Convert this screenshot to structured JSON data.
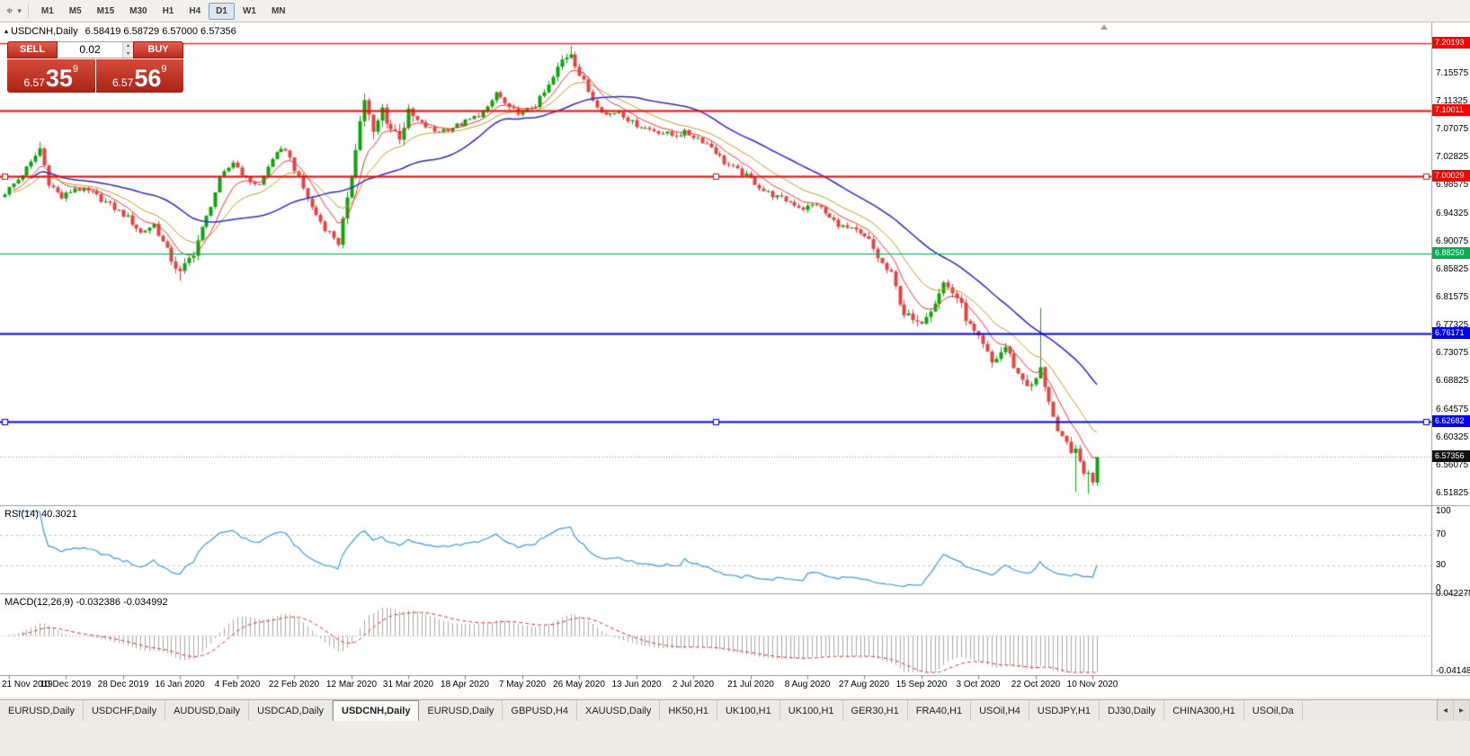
{
  "toolbar": {
    "cursor_icon": "⌖",
    "dropdown_icon": "▾",
    "timeframes": [
      "M1",
      "M5",
      "M15",
      "M30",
      "H1",
      "H4",
      "D1",
      "W1",
      "MN"
    ],
    "active_timeframe": "D1"
  },
  "chart": {
    "collapse_icon": "▴",
    "title": "USDCNH,Daily",
    "ohlc": "6.58419 6.58729 6.57000 6.57356"
  },
  "trade_panel": {
    "sell_label": "SELL",
    "buy_label": "BUY",
    "volume": "0.02",
    "spin_up": "▴",
    "spin_down": "▾",
    "sell_price": {
      "prefix": "6.57",
      "big": "35",
      "sup": "9"
    },
    "buy_price": {
      "prefix": "6.57",
      "big": "56",
      "sup": "9"
    }
  },
  "price_axis": {
    "ticks": [
      "7.15575",
      "7.11325",
      "7.07075",
      "7.02825",
      "6.98575",
      "6.94325",
      "6.90075",
      "6.85825",
      "6.81575",
      "6.77325",
      "6.73075",
      "6.68825",
      "6.64575",
      "6.60325",
      "6.56075",
      "6.51825"
    ]
  },
  "rsi_panel": {
    "header": "RSI(14) 40.3021",
    "axis_labels": [
      "100",
      "70",
      "30",
      "0"
    ]
  },
  "macd_panel": {
    "header": "MACD(12,26,9) -0.032386 -0.034992",
    "axis_top": "0.042275",
    "axis_bottom": "-0.04148"
  },
  "dates": [
    "21 Nov 2019",
    "10 Dec 2019",
    "28 Dec 2019",
    "16 Jan 2020",
    "4 Feb 2020",
    "22 Feb 2020",
    "12 Mar 2020",
    "31 Mar 2020",
    "18 Apr 2020",
    "7 May 2020",
    "26 May 2020",
    "13 Jun 2020",
    "2 Jul 2020",
    "21 Jul 2020",
    "8 Aug 2020",
    "27 Aug 2020",
    "15 Sep 2020",
    "3 Oct 2020",
    "22 Oct 2020",
    "10 Nov 2020"
  ],
  "tabs": {
    "items": [
      "EURUSD,Daily",
      "USDCHF,Daily",
      "AUDUSD,Daily",
      "USDCAD,Daily",
      "USDCNH,Daily",
      "EURUSD,Daily",
      "GBPUSD,H4",
      "XAUUSD,Daily",
      "HK50,H1",
      "UK100,H1",
      "UK100,H1",
      "GER30,H1",
      "FRA40,H1",
      "USOil,H4",
      "USDJPY,H1",
      "DJ30,Daily",
      "CHINA300,H1",
      "USOil,Da"
    ],
    "active_index": 4,
    "left_arrow": "◂",
    "right_arrow": "▸"
  },
  "chart_data": {
    "type": "candlestick",
    "symbol": "USDCNH",
    "timeframe": "Daily",
    "count": 250,
    "x_labels_every": 13,
    "ylim": [
      6.5004,
      7.2334
    ],
    "up_color": "#10a310",
    "down_color": "#e34444",
    "current_price": 6.57356,
    "current_price_label": "6.57356",
    "price_anchors": [
      [
        0,
        6.975
      ],
      [
        3,
        6.995
      ],
      [
        6,
        7.02
      ],
      [
        8,
        7.042
      ],
      [
        10,
        6.99
      ],
      [
        13,
        6.967
      ],
      [
        16,
        6.982
      ],
      [
        20,
        6.974
      ],
      [
        24,
        6.956
      ],
      [
        28,
        6.937
      ],
      [
        31,
        6.914
      ],
      [
        34,
        6.927
      ],
      [
        37,
        6.885
      ],
      [
        40,
        6.852
      ],
      [
        43,
        6.885
      ],
      [
        46,
        6.938
      ],
      [
        49,
        6.995
      ],
      [
        52,
        7.022
      ],
      [
        55,
        6.996
      ],
      [
        58,
        6.986
      ],
      [
        61,
        7.028
      ],
      [
        64,
        7.042
      ],
      [
        67,
        6.996
      ],
      [
        70,
        6.952
      ],
      [
        73,
        6.921
      ],
      [
        76,
        6.901
      ],
      [
        78,
        6.958
      ],
      [
        80,
        7.048
      ],
      [
        82,
        7.118
      ],
      [
        84,
        7.062
      ],
      [
        86,
        7.102
      ],
      [
        88,
        7.072
      ],
      [
        90,
        7.062
      ],
      [
        92,
        7.094
      ],
      [
        95,
        7.079
      ],
      [
        98,
        7.068
      ],
      [
        101,
        7.072
      ],
      [
        104,
        7.079
      ],
      [
        107,
        7.089
      ],
      [
        110,
        7.102
      ],
      [
        112,
        7.127
      ],
      [
        115,
        7.101
      ],
      [
        118,
        7.096
      ],
      [
        121,
        7.108
      ],
      [
        124,
        7.136
      ],
      [
        127,
        7.176
      ],
      [
        129,
        7.189
      ],
      [
        131,
        7.154
      ],
      [
        134,
        7.117
      ],
      [
        137,
        7.093
      ],
      [
        140,
        7.099
      ],
      [
        143,
        7.081
      ],
      [
        146,
        7.073
      ],
      [
        149,
        7.068
      ],
      [
        152,
        7.062
      ],
      [
        155,
        7.066
      ],
      [
        158,
        7.058
      ],
      [
        161,
        7.045
      ],
      [
        164,
        7.021
      ],
      [
        167,
        7.008
      ],
      [
        170,
        6.996
      ],
      [
        173,
        6.978
      ],
      [
        176,
        6.968
      ],
      [
        179,
        6.961
      ],
      [
        182,
        6.951
      ],
      [
        185,
        6.958
      ],
      [
        188,
        6.936
      ],
      [
        191,
        6.923
      ],
      [
        194,
        6.916
      ],
      [
        197,
        6.9
      ],
      [
        200,
        6.866
      ],
      [
        202,
        6.849
      ],
      [
        205,
        6.792
      ],
      [
        208,
        6.773
      ],
      [
        211,
        6.801
      ],
      [
        214,
        6.838
      ],
      [
        217,
        6.816
      ],
      [
        220,
        6.771
      ],
      [
        223,
        6.741
      ],
      [
        225,
        6.716
      ],
      [
        228,
        6.741
      ],
      [
        231,
        6.699
      ],
      [
        234,
        6.679
      ],
      [
        236,
        6.706
      ],
      [
        238,
        6.661
      ],
      [
        240,
        6.606
      ],
      [
        242,
        6.593
      ],
      [
        244,
        6.579
      ],
      [
        246,
        6.553
      ],
      [
        248,
        6.539
      ],
      [
        249,
        6.5736
      ]
    ],
    "spikes": [
      {
        "i": 8,
        "high": 7.052
      },
      {
        "i": 40,
        "low": 6.841
      },
      {
        "i": 129,
        "high": 7.198
      },
      {
        "i": 236,
        "high": 6.8
      },
      {
        "i": 244,
        "low": 6.521
      },
      {
        "i": 247,
        "low": 6.518
      }
    ],
    "volatility": {
      "base": 0.0055,
      "zones": [
        {
          "from": 36,
          "to": 44,
          "mult": 1.6
        },
        {
          "from": 76,
          "to": 93,
          "mult": 2.3
        },
        {
          "from": 124,
          "to": 133,
          "mult": 1.5
        },
        {
          "from": 196,
          "to": 249,
          "mult": 1.7
        }
      ]
    },
    "moving_averages": [
      {
        "type": "ema",
        "period": 17,
        "color": "#c39b25",
        "width": 1
      },
      {
        "type": "ema",
        "period": 8,
        "color": "#ff2e2e",
        "width": 1
      },
      {
        "type": "sma",
        "period": 34,
        "color": "#2b2bd4",
        "width": 1.5
      }
    ],
    "levels": [
      {
        "price": 7.20193,
        "label": "7.20193",
        "color": "#ff0000",
        "width": 1,
        "selected": false
      },
      {
        "price": 7.10011,
        "label": "7.10011",
        "color": "#ff0000",
        "width": 2,
        "selected": false
      },
      {
        "price": 7.00029,
        "label": "7.00029",
        "color": "#ff0000",
        "width": 2,
        "selected": true
      },
      {
        "price": 6.8825,
        "label": "6.88250",
        "color": "#00b050",
        "width": 1,
        "selected": false
      },
      {
        "price": 6.76171,
        "label": "6.76171",
        "color": "#0000ff",
        "width": 2,
        "selected": false
      },
      {
        "price": 6.62682,
        "label": "6.62682",
        "color": "#0000ff",
        "width": 2,
        "selected": true
      }
    ],
    "indicators": [
      {
        "name": "RSI",
        "period": 14,
        "value": 40.3021,
        "guides": [
          70,
          30
        ],
        "range": [
          0,
          100
        ],
        "color": "#3e9adf"
      },
      {
        "name": "MACD",
        "fast": 12,
        "slow": 26,
        "signal": 9,
        "macd_value": -0.032386,
        "signal_value": -0.034992,
        "range": [
          -0.04148,
          0.042275
        ],
        "hist_color": "#a9a9a9",
        "signal_color": "#e03030"
      }
    ]
  }
}
